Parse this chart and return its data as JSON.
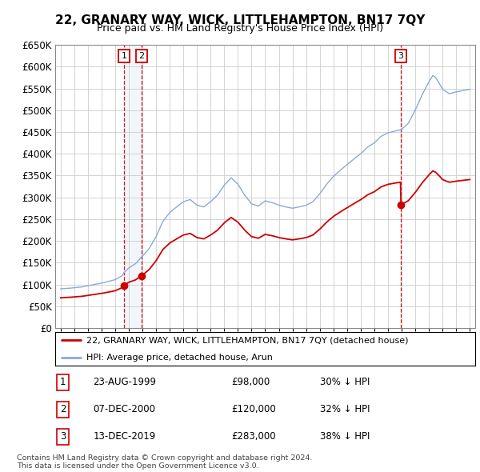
{
  "title": "22, GRANARY WAY, WICK, LITTLEHAMPTON, BN17 7QY",
  "subtitle": "Price paid vs. HM Land Registry's House Price Index (HPI)",
  "ylim": [
    0,
    650000
  ],
  "yticks": [
    0,
    50000,
    100000,
    150000,
    200000,
    250000,
    300000,
    350000,
    400000,
    450000,
    500000,
    550000,
    600000,
    650000
  ],
  "ytick_labels": [
    "£0",
    "£50K",
    "£100K",
    "£150K",
    "£200K",
    "£250K",
    "£300K",
    "£350K",
    "£400K",
    "£450K",
    "£500K",
    "£550K",
    "£600K",
    "£650K"
  ],
  "xlim_start": 1994.6,
  "xlim_end": 2025.4,
  "background_color": "#ffffff",
  "plot_bg_color": "#ffffff",
  "grid_color": "#cccccc",
  "transactions": [
    {
      "num": 1,
      "date": "23-AUG-1999",
      "year": 1999.64,
      "price": 98000,
      "label": "23-AUG-1999",
      "price_str": "£98,000",
      "hpi_str": "30% ↓ HPI"
    },
    {
      "num": 2,
      "date": "07-DEC-2000",
      "year": 2000.93,
      "price": 120000,
      "label": "07-DEC-2000",
      "price_str": "£120,000",
      "hpi_str": "32% ↓ HPI"
    },
    {
      "num": 3,
      "date": "13-DEC-2019",
      "year": 2019.95,
      "price": 283000,
      "label": "13-DEC-2019",
      "price_str": "£283,000",
      "hpi_str": "38% ↓ HPI"
    }
  ],
  "legend_line1": "22, GRANARY WAY, WICK, LITTLEHAMPTON, BN17 7QY (detached house)",
  "legend_line2": "HPI: Average price, detached house, Arun",
  "footnote": "Contains HM Land Registry data © Crown copyright and database right 2024.\nThis data is licensed under the Open Government Licence v3.0.",
  "red_line_color": "#cc0000",
  "blue_line_color": "#88aadd",
  "marker_color": "#cc0000",
  "vline_color": "#cc0000",
  "shade_color": "#ccddf0",
  "box_border_color": "#cc0000",
  "hpi_control": [
    [
      1995.0,
      90000
    ],
    [
      1995.5,
      91000
    ],
    [
      1996.0,
      92500
    ],
    [
      1996.5,
      94000
    ],
    [
      1997.0,
      97000
    ],
    [
      1997.5,
      100000
    ],
    [
      1998.0,
      103000
    ],
    [
      1998.5,
      107000
    ],
    [
      1999.0,
      111000
    ],
    [
      1999.5,
      120000
    ],
    [
      1999.64,
      127000
    ],
    [
      2000.0,
      138000
    ],
    [
      2000.5,
      148000
    ],
    [
      2000.93,
      163000
    ],
    [
      2001.0,
      165000
    ],
    [
      2001.5,
      183000
    ],
    [
      2002.0,
      210000
    ],
    [
      2002.5,
      245000
    ],
    [
      2003.0,
      265000
    ],
    [
      2003.5,
      278000
    ],
    [
      2004.0,
      290000
    ],
    [
      2004.5,
      295000
    ],
    [
      2005.0,
      282000
    ],
    [
      2005.5,
      278000
    ],
    [
      2006.0,
      290000
    ],
    [
      2006.5,
      305000
    ],
    [
      2007.0,
      328000
    ],
    [
      2007.5,
      345000
    ],
    [
      2008.0,
      330000
    ],
    [
      2008.5,
      305000
    ],
    [
      2009.0,
      285000
    ],
    [
      2009.5,
      280000
    ],
    [
      2010.0,
      292000
    ],
    [
      2010.5,
      288000
    ],
    [
      2011.0,
      282000
    ],
    [
      2011.5,
      278000
    ],
    [
      2012.0,
      275000
    ],
    [
      2012.5,
      278000
    ],
    [
      2013.0,
      282000
    ],
    [
      2013.5,
      290000
    ],
    [
      2014.0,
      308000
    ],
    [
      2014.5,
      330000
    ],
    [
      2015.0,
      348000
    ],
    [
      2015.5,
      362000
    ],
    [
      2016.0,
      375000
    ],
    [
      2016.5,
      388000
    ],
    [
      2017.0,
      400000
    ],
    [
      2017.5,
      415000
    ],
    [
      2018.0,
      425000
    ],
    [
      2018.5,
      440000
    ],
    [
      2019.0,
      448000
    ],
    [
      2019.5,
      452000
    ],
    [
      2019.95,
      455000
    ],
    [
      2020.0,
      456000
    ],
    [
      2020.5,
      470000
    ],
    [
      2021.0,
      500000
    ],
    [
      2021.5,
      535000
    ],
    [
      2022.0,
      565000
    ],
    [
      2022.3,
      580000
    ],
    [
      2022.5,
      575000
    ],
    [
      2022.8,
      560000
    ],
    [
      2023.0,
      548000
    ],
    [
      2023.5,
      538000
    ],
    [
      2024.0,
      542000
    ],
    [
      2024.5,
      545000
    ],
    [
      2025.0,
      548000
    ]
  ]
}
